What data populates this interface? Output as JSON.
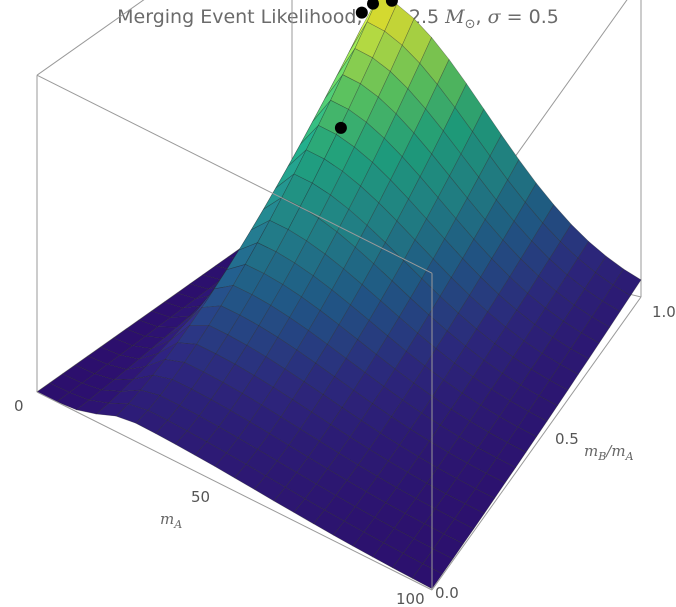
{
  "title": {
    "main": "Merging Event Likelihood, ",
    "mu_symbol": "μ",
    "mu_text": " = 2.5 ",
    "mass_symbol": "M",
    "mass_sub": "⊙",
    "sep": ", ",
    "sigma_symbol": "σ",
    "sigma_text": " = 0.5"
  },
  "axes": {
    "mA": {
      "label": "m",
      "label_sub": "A",
      "ticks": [
        "0",
        "50",
        "100"
      ],
      "range": [
        0,
        100
      ]
    },
    "ratio": {
      "label_num": "m",
      "label_num_sub": "B",
      "label_den": "/m",
      "label_den_sub": "A",
      "ticks": [
        "0.0",
        "0.5",
        "1.0"
      ],
      "range": [
        0,
        1
      ]
    }
  },
  "chart_data": {
    "type": "surface3d",
    "title": "Merging Event Likelihood, μ = 2.5 M⊙, σ = 0.5",
    "xlabel": "mA",
    "ylabel": "mB/mA",
    "xlim": [
      0,
      100
    ],
    "ylim": [
      0,
      1
    ],
    "colormap": "viridis",
    "colors": {
      "low": "#2c0f6d",
      "mid": "#23898e",
      "high": "#fde725"
    },
    "surface_grid": {
      "x": [
        0,
        5,
        10,
        15,
        20,
        25,
        30,
        35,
        40,
        45,
        50,
        55,
        60,
        65,
        70,
        75,
        80,
        85,
        90,
        95,
        100
      ],
      "y": [
        0,
        0.05,
        0.1,
        0.15,
        0.2,
        0.25,
        0.3,
        0.35,
        0.4,
        0.45,
        0.5,
        0.55,
        0.6,
        0.65,
        0.7,
        0.75,
        0.8,
        0.85,
        0.9,
        0.95,
        1.0
      ]
    },
    "points": [
      {
        "x": 14,
        "y": 1.0
      },
      {
        "x": 20,
        "y": 1.0
      },
      {
        "x": 26,
        "y": 0.96
      },
      {
        "x": 30,
        "y": 0.98
      },
      {
        "x": 30,
        "y": 1.0
      }
    ]
  }
}
